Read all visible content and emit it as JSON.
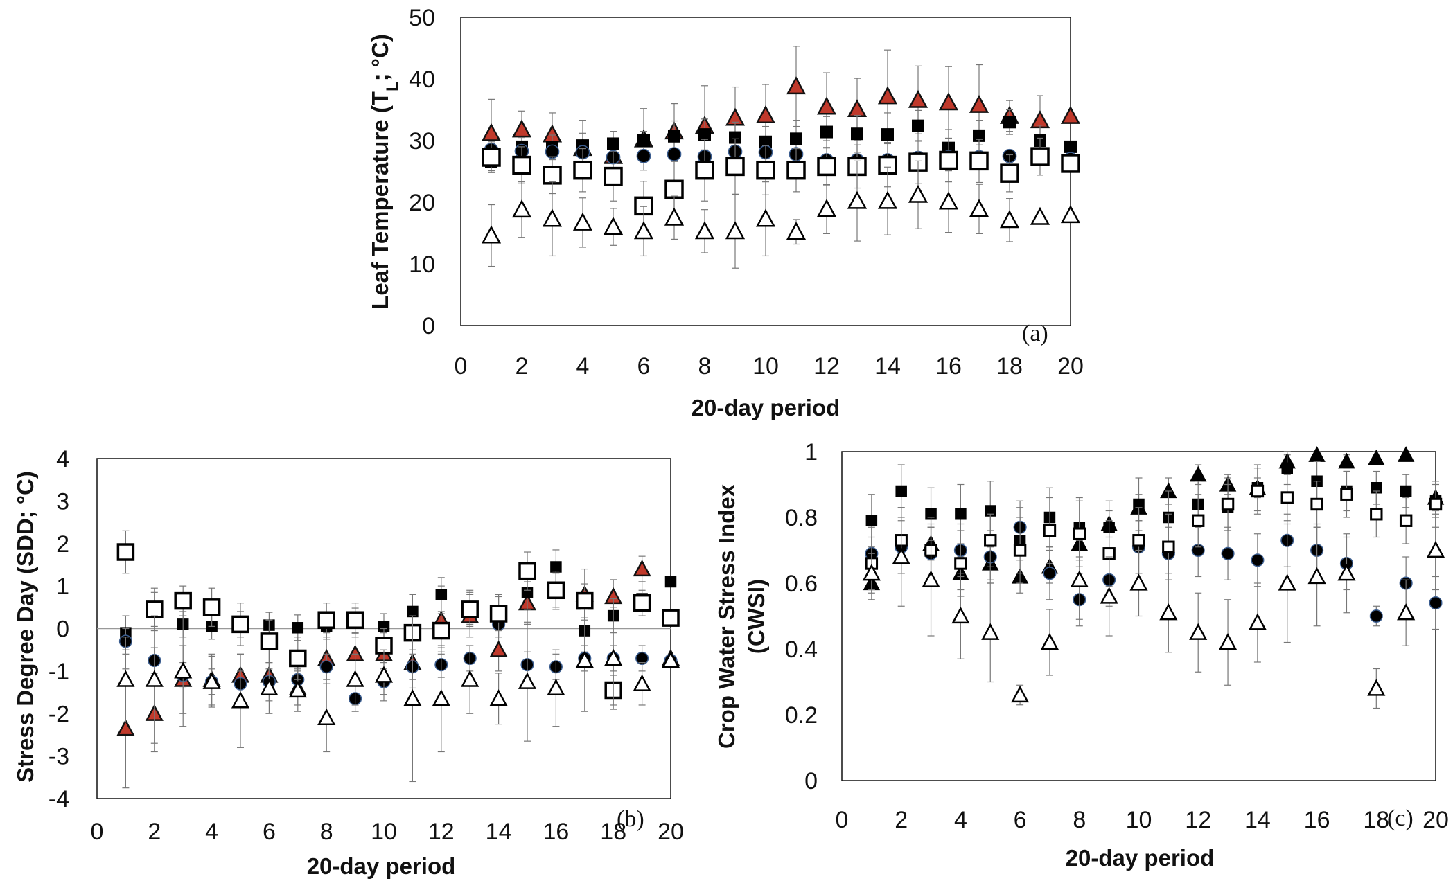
{
  "chart_data": [
    {
      "id": "a",
      "type": "scatter",
      "panel_label": "(a)",
      "xlabel": "20-day period",
      "ylabel": "Leaf Temperature (T",
      "ylabel_sub": "L",
      "ylabel_tail": "; °C)",
      "xlim": [
        0,
        20
      ],
      "ylim": [
        0,
        50
      ],
      "xticks": [
        0,
        2,
        4,
        6,
        8,
        10,
        12,
        14,
        16,
        18,
        20
      ],
      "yticks": [
        0,
        10,
        20,
        30,
        40,
        50
      ],
      "grid": false,
      "zero_line": false,
      "series": [
        {
          "marker": "triangle-red",
          "x": [
            1,
            2,
            3,
            4,
            5,
            6,
            7,
            8,
            9,
            10,
            11,
            12,
            13,
            14,
            15,
            16,
            17,
            18,
            19,
            20
          ],
          "y": [
            31.2,
            31.8,
            31,
            28.8,
            27.5,
            30.2,
            31.5,
            32.4,
            33.7,
            34.1,
            38.8,
            35.5,
            35.1,
            37.2,
            36.6,
            36.2,
            35.8,
            34,
            33.3,
            34
          ],
          "err": [
            5.5,
            3,
            3.5,
            4.5,
            4,
            5,
            4.5,
            6.5,
            5,
            5,
            6.5,
            5.5,
            5,
            7.5,
            5.5,
            5.8,
            6.5,
            2.5,
            4,
            0
          ]
        },
        {
          "marker": "square-filled",
          "x": [
            1,
            2,
            3,
            4,
            5,
            6,
            7,
            8,
            9,
            10,
            11,
            12,
            13,
            14,
            15,
            16,
            17,
            18,
            19,
            20
          ],
          "y": [
            26.6,
            29,
            28.9,
            29.2,
            29.5,
            30,
            30.7,
            31,
            30.5,
            29.8,
            30.3,
            31.4,
            31.1,
            31,
            32.4,
            28.8,
            30.8,
            33,
            30,
            29
          ],
          "err": [
            1.5,
            1.5,
            2,
            2,
            2,
            1.5,
            2.5,
            2.5,
            2.5,
            2.5,
            3,
            2.5,
            3,
            3.5,
            2.5,
            3,
            2.5,
            2,
            2.5,
            0
          ]
        },
        {
          "marker": "circle-filled",
          "x": [
            1,
            2,
            3,
            4,
            5,
            6,
            7,
            8,
            9,
            10,
            11,
            12,
            13,
            14,
            15,
            16,
            17,
            18,
            19,
            20
          ],
          "y": [
            28.5,
            28.3,
            28.2,
            28.1,
            27.3,
            27.5,
            27.8,
            27.4,
            28.2,
            28.1,
            27.8,
            26.8,
            26.8,
            26.8,
            27.2,
            27.3,
            27.3,
            27.5,
            27.4,
            27
          ],
          "err": [
            1,
            1,
            1,
            1,
            1,
            1,
            1,
            1,
            1,
            1,
            1,
            1,
            1,
            1,
            1,
            1,
            1,
            1,
            1,
            0
          ]
        },
        {
          "marker": "square-open",
          "x": [
            1,
            2,
            3,
            4,
            5,
            6,
            7,
            8,
            9,
            10,
            11,
            12,
            13,
            14,
            15,
            16,
            17,
            18,
            19,
            20
          ],
          "y": [
            27.3,
            26,
            24.4,
            25.2,
            24.2,
            19.4,
            22.1,
            25.2,
            25.8,
            25.2,
            25.2,
            25.8,
            25.8,
            26,
            26.5,
            26.8,
            26.7,
            24.7,
            27.4,
            26.3
          ],
          "err": [
            2.5,
            3,
            3,
            3.5,
            4,
            4,
            4.5,
            5,
            4.5,
            4,
            3.5,
            3,
            3.5,
            3.5,
            3.5,
            3.5,
            3.5,
            3,
            3,
            0
          ]
        },
        {
          "marker": "triangle-open",
          "x": [
            1,
            2,
            3,
            4,
            5,
            6,
            7,
            8,
            9,
            10,
            11,
            12,
            13,
            14,
            15,
            16,
            17,
            18,
            19,
            20
          ],
          "y": [
            14.6,
            18.8,
            17.3,
            16.7,
            16,
            15.3,
            17.5,
            15.3,
            15.3,
            17.3,
            15.2,
            18.9,
            20.2,
            20.2,
            21.2,
            20.1,
            18.9,
            17.1,
            17.6,
            17.9
          ],
          "err": [
            5,
            4.5,
            6,
            4,
            3,
            4,
            3.5,
            3.5,
            6,
            6,
            2,
            4,
            6.5,
            5.5,
            5.5,
            5,
            4,
            3.5,
            0,
            0
          ]
        }
      ]
    },
    {
      "id": "b",
      "type": "scatter",
      "panel_label": "(b)",
      "xlabel": "20-day period",
      "ylabel": "Stress Degree Day (SDD; °C)",
      "xlim": [
        0,
        20
      ],
      "ylim": [
        -4,
        4
      ],
      "xticks": [
        0,
        2,
        4,
        6,
        8,
        10,
        12,
        14,
        16,
        18,
        20
      ],
      "yticks": [
        -4,
        -3,
        -2,
        -1,
        0,
        1,
        2,
        3,
        4
      ],
      "grid": false,
      "zero_line": true,
      "series": [
        {
          "marker": "triangle-red",
          "x": [
            1,
            2,
            3,
            4,
            5,
            6,
            7,
            8,
            9,
            10,
            11,
            12,
            13,
            14,
            15,
            16,
            17,
            18,
            19,
            20
          ],
          "y": [
            -2.35,
            -2,
            -1.2,
            -1.2,
            -1.1,
            -1.1,
            -1.4,
            -0.7,
            -0.6,
            -0.6,
            -0.8,
            0.2,
            0.3,
            -0.5,
            0.6,
            0.9,
            0.8,
            0.75,
            1.4,
            -0.7
          ],
          "err": [
            1.4,
            0.9,
            0.8,
            0.6,
            0.5,
            0.6,
            0.4,
            0.6,
            0.5,
            0.5,
            0.6,
            0.8,
            0.5,
            0.5,
            0.5,
            0.4,
            0.6,
            0.4,
            0.3,
            0
          ]
        },
        {
          "marker": "square-filled",
          "x": [
            1,
            2,
            3,
            4,
            5,
            6,
            7,
            8,
            9,
            10,
            11,
            12,
            13,
            14,
            15,
            16,
            17,
            18,
            19,
            20
          ],
          "y": [
            -0.1,
            0.45,
            0.1,
            0.05,
            0.1,
            0.08,
            0.02,
            0.05,
            0.18,
            0.05,
            0.4,
            0.8,
            0.5,
            0.4,
            0.85,
            1.45,
            -0.05,
            0.3,
            0.7,
            1.1
          ],
          "err": [
            0.4,
            0.4,
            0.3,
            0.3,
            0.3,
            0.3,
            0.3,
            0.3,
            0.3,
            0.3,
            0.4,
            0.4,
            0.4,
            0.4,
            0.4,
            0.4,
            0.5,
            0.4,
            0.4,
            0
          ]
        },
        {
          "marker": "circle-filled",
          "x": [
            1,
            2,
            3,
            4,
            5,
            6,
            7,
            8,
            9,
            10,
            11,
            12,
            13,
            14,
            15,
            16,
            17,
            18,
            19,
            20
          ],
          "y": [
            -0.3,
            -0.75,
            -1.1,
            -1.25,
            -1.3,
            -1.25,
            -1.2,
            -0.9,
            -1.65,
            -1.25,
            -0.9,
            -0.85,
            -0.7,
            0.1,
            -0.85,
            -0.9,
            -0.7,
            -0.7,
            -0.7,
            -0.75
          ],
          "err": [
            0.3,
            0.3,
            0.3,
            0.3,
            0.3,
            0.3,
            0.3,
            0.3,
            0.3,
            0.3,
            0.3,
            0.3,
            0.3,
            0.3,
            0.3,
            0.3,
            0.3,
            0.3,
            0.3,
            0
          ]
        },
        {
          "marker": "square-open",
          "x": [
            1,
            2,
            3,
            4,
            5,
            6,
            7,
            8,
            9,
            10,
            11,
            12,
            13,
            14,
            15,
            16,
            17,
            18,
            19,
            20
          ],
          "y": [
            1.8,
            0.45,
            0.65,
            0.5,
            0.1,
            -0.3,
            -0.7,
            0.2,
            0.2,
            -0.4,
            -0.1,
            -0.05,
            0.45,
            0.35,
            1.35,
            0.9,
            0.65,
            -1.45,
            0.6,
            0.25
          ],
          "err": [
            0.5,
            0.5,
            0.35,
            0.45,
            0.5,
            0.5,
            0.5,
            0.4,
            0.4,
            0.4,
            0.4,
            0.4,
            0.4,
            0.4,
            0.45,
            0.45,
            0.4,
            0.35,
            0.3,
            0
          ]
        },
        {
          "marker": "triangle-open",
          "x": [
            1,
            2,
            3,
            4,
            5,
            6,
            7,
            8,
            9,
            10,
            11,
            12,
            13,
            14,
            15,
            16,
            17,
            18,
            19,
            20
          ],
          "y": [
            -1.2,
            -1.2,
            -1,
            -1.25,
            -1.7,
            -1.4,
            -1.45,
            -2.1,
            -1.2,
            -1.1,
            -1.65,
            -1.65,
            -1.2,
            -1.65,
            -1.25,
            -1.4,
            -0.75,
            -0.7,
            -1.3,
            -0.75
          ],
          "err": [
            1,
            1.5,
            1.3,
            0.6,
            1.1,
            0.6,
            0.5,
            0.8,
            0.6,
            0.6,
            1.95,
            1.25,
            0.8,
            0.6,
            1.4,
            0.9,
            1.2,
            1.2,
            0.5,
            0
          ]
        }
      ]
    },
    {
      "id": "c",
      "type": "scatter",
      "panel_label": "(c)",
      "xlabel": "20-day period",
      "ylabel": "Crop Water Stress Index",
      "ylabel_line2": "(CWSI)",
      "xlim": [
        0,
        20
      ],
      "ylim": [
        0,
        1
      ],
      "xticks": [
        0,
        2,
        4,
        6,
        8,
        10,
        12,
        14,
        16,
        18,
        20
      ],
      "yticks": [
        0,
        0.2,
        0.4,
        0.6,
        0.8,
        1
      ],
      "grid": false,
      "zero_line": false,
      "series": [
        {
          "marker": "triangle-filled",
          "x": [
            1,
            2,
            3,
            4,
            5,
            6,
            7,
            8,
            9,
            10,
            11,
            12,
            13,
            14,
            15,
            16,
            17,
            18,
            19,
            20
          ],
          "y": [
            0.6,
            0.68,
            0.72,
            0.63,
            0.66,
            0.62,
            0.65,
            0.72,
            0.78,
            0.83,
            0.88,
            0.93,
            0.9,
            0.89,
            0.97,
            0.99,
            0.97,
            0.98,
            0.99,
            0.86
          ],
          "err": [
            0.05,
            0.05,
            0.05,
            0.05,
            0.05,
            0.05,
            0.05,
            0.05,
            0.04,
            0.04,
            0.04,
            0.03,
            0.03,
            0.03,
            0.02,
            0.01,
            0.02,
            0.02,
            0.01,
            0.05
          ]
        },
        {
          "marker": "square-filled",
          "x": [
            1,
            2,
            3,
            4,
            5,
            6,
            7,
            8,
            9,
            10,
            11,
            12,
            13,
            14,
            15,
            16,
            17,
            18,
            19,
            20
          ],
          "y": [
            0.79,
            0.88,
            0.81,
            0.81,
            0.82,
            0.73,
            0.8,
            0.77,
            0.77,
            0.84,
            0.8,
            0.84,
            0.83,
            0.89,
            0.95,
            0.91,
            0.88,
            0.89,
            0.88,
            0.85
          ],
          "err": [
            0.08,
            0.08,
            0.08,
            0.09,
            0.09,
            0.1,
            0.09,
            0.09,
            0.08,
            0.08,
            0.08,
            0.07,
            0.07,
            0.07,
            0.05,
            0.06,
            0.06,
            0.05,
            0.05,
            0.05
          ]
        },
        {
          "marker": "circle-filled",
          "x": [
            1,
            2,
            3,
            4,
            5,
            6,
            7,
            8,
            9,
            10,
            11,
            12,
            13,
            14,
            15,
            16,
            17,
            18,
            19,
            20
          ],
          "y": [
            0.69,
            0.71,
            0.69,
            0.7,
            0.68,
            0.77,
            0.63,
            0.55,
            0.61,
            0.71,
            0.69,
            0.7,
            0.69,
            0.67,
            0.73,
            0.7,
            0.66,
            0.5,
            0.6,
            0.54
          ],
          "err": [
            0.08,
            0.08,
            0.08,
            0.08,
            0.08,
            0.08,
            0.08,
            0.08,
            0.08,
            0.08,
            0.08,
            0.08,
            0.08,
            0.08,
            0.08,
            0.08,
            0.08,
            0.03,
            0.08,
            0.08
          ]
        },
        {
          "marker": "square-open-small",
          "x": [
            1,
            2,
            3,
            4,
            5,
            6,
            7,
            8,
            9,
            10,
            11,
            12,
            13,
            14,
            15,
            16,
            17,
            18,
            19,
            20
          ],
          "y": [
            0.66,
            0.73,
            0.7,
            0.66,
            0.73,
            0.7,
            0.76,
            0.75,
            0.69,
            0.73,
            0.71,
            0.79,
            0.84,
            0.88,
            0.86,
            0.84,
            0.87,
            0.81,
            0.79,
            0.84
          ],
          "err": [
            0.08,
            0.1,
            0.1,
            0.1,
            0.08,
            0.1,
            0.1,
            0.1,
            0.1,
            0.1,
            0.1,
            0.08,
            0.08,
            0.07,
            0.07,
            0.07,
            0.07,
            0.07,
            0.07,
            0.07
          ]
        },
        {
          "marker": "triangle-open",
          "x": [
            1,
            2,
            3,
            4,
            5,
            6,
            7,
            8,
            9,
            10,
            11,
            12,
            13,
            14,
            15,
            16,
            17,
            18,
            19,
            20
          ],
          "y": [
            0.63,
            0.68,
            0.61,
            0.5,
            0.45,
            0.26,
            0.42,
            0.61,
            0.56,
            0.6,
            0.51,
            0.45,
            0.42,
            0.48,
            0.6,
            0.62,
            0.63,
            0.28,
            0.51,
            0.7
          ],
          "err": [
            0.06,
            0.15,
            0.17,
            0.13,
            0.15,
            0.03,
            0.1,
            0.12,
            0.12,
            0.1,
            0.12,
            0.12,
            0.13,
            0.12,
            0.18,
            0.15,
            0.12,
            0.06,
            0.1,
            0.12
          ]
        }
      ]
    }
  ]
}
